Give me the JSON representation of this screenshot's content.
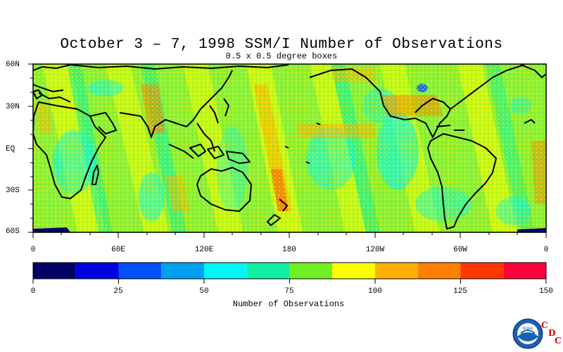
{
  "title": "October 3 – 7, 1998 SSM/I Number of Observations",
  "subtitle": "0.5 x 0.5 degree boxes",
  "lat_labels": [
    "60N",
    "30N",
    "EQ",
    "30S",
    "60S"
  ],
  "lon_labels": [
    "0",
    "60E",
    "120E",
    "180",
    "120W",
    "60W",
    "0"
  ],
  "colorbar": {
    "title": "Number of Observations",
    "tick_labels": [
      "0",
      "25",
      "50",
      "75",
      "100",
      "125",
      "150"
    ],
    "bins": [
      {
        "min": 0,
        "max": 12.5,
        "color": "#000066"
      },
      {
        "min": 12.5,
        "max": 25,
        "color": "#0000dd"
      },
      {
        "min": 25,
        "max": 37.5,
        "color": "#0050ff"
      },
      {
        "min": 37.5,
        "max": 50,
        "color": "#00a0f0"
      },
      {
        "min": 50,
        "max": 62.5,
        "color": "#00f5f5"
      },
      {
        "min": 62.5,
        "max": 75,
        "color": "#10f0a0"
      },
      {
        "min": 75,
        "max": 87.5,
        "color": "#70f020"
      },
      {
        "min": 87.5,
        "max": 100,
        "color": "#ffff00"
      },
      {
        "min": 100,
        "max": 112.5,
        "color": "#ffb000"
      },
      {
        "min": 112.5,
        "max": 125,
        "color": "#ff8000"
      },
      {
        "min": 125,
        "max": 137.5,
        "color": "#ff3800"
      },
      {
        "min": 137.5,
        "max": 150,
        "color": "#ff0038"
      }
    ]
  },
  "logo": {
    "icon": "noaa-logo-icon",
    "text": "NOAA",
    "cdc_letters": [
      "C",
      "D",
      "C"
    ]
  }
}
